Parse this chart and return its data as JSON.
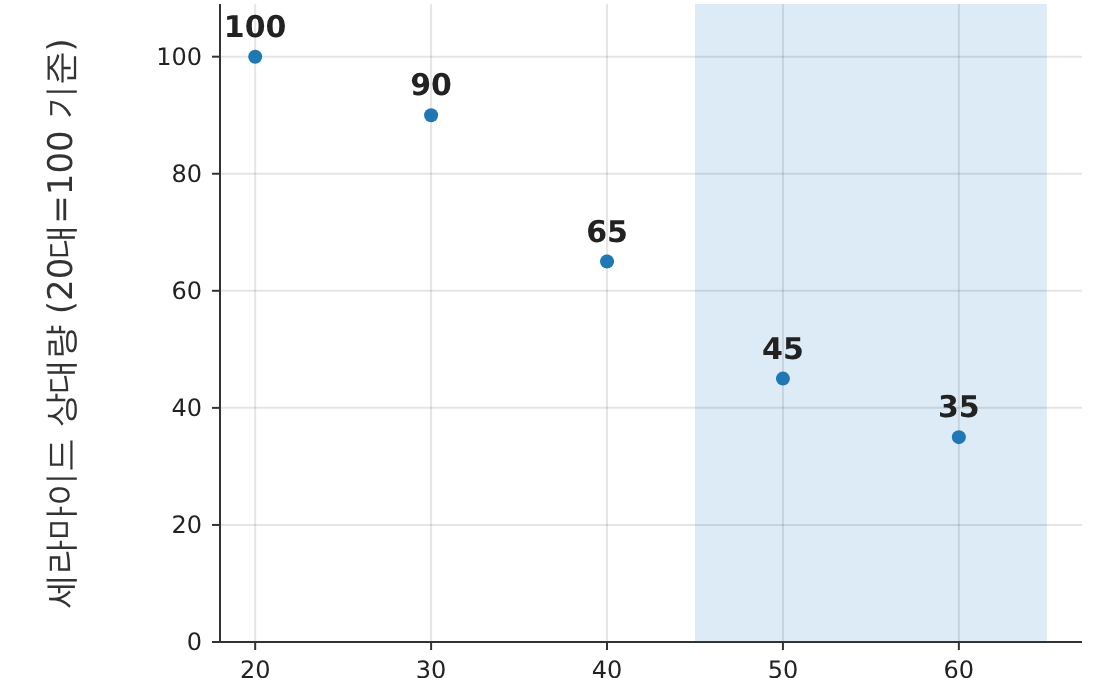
{
  "chart_data": {
    "type": "scatter",
    "ylabel": "세라마이드 상대량 (20대=100 기준)",
    "x": [
      20,
      30,
      40,
      50,
      60
    ],
    "values": [
      100,
      90,
      65,
      45,
      35
    ],
    "color": "#1f77b4",
    "marker": "circle",
    "data_labels": true,
    "grid": true,
    "xlim": [
      18,
      67
    ],
    "ylim": [
      0,
      109
    ],
    "xticks": [
      20,
      30,
      40,
      50,
      60
    ],
    "yticks": [
      0,
      20,
      40,
      60,
      80,
      100
    ],
    "bands": [
      {
        "axis": "x",
        "from": 45,
        "to": 65,
        "color": "#ddebf6"
      }
    ]
  }
}
